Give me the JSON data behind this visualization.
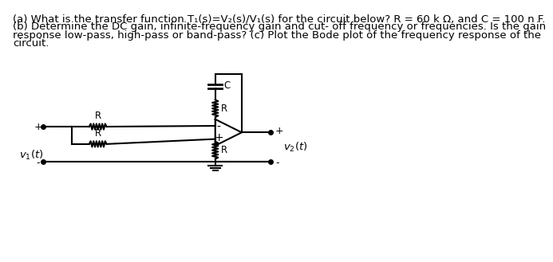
{
  "title_line1": "(a) What is the transfer function T₁(s)=V₂(s)/V₁(s) for the circuit below? R = 60 k Ω, and C = 100 n F.",
  "title_line2": "(b) Determine the DC gain, infinite-frequency gain and cut- off frequency or frequencies. Is the gain",
  "title_line3": "response low-pass, high-pass or band-pass? (c) Plot the Bode plot of the frequency response of the",
  "title_line4": "circuit.",
  "bg_color": "#ffffff",
  "line_color": "#000000",
  "text_color": "#000000",
  "font_size": 9.5
}
